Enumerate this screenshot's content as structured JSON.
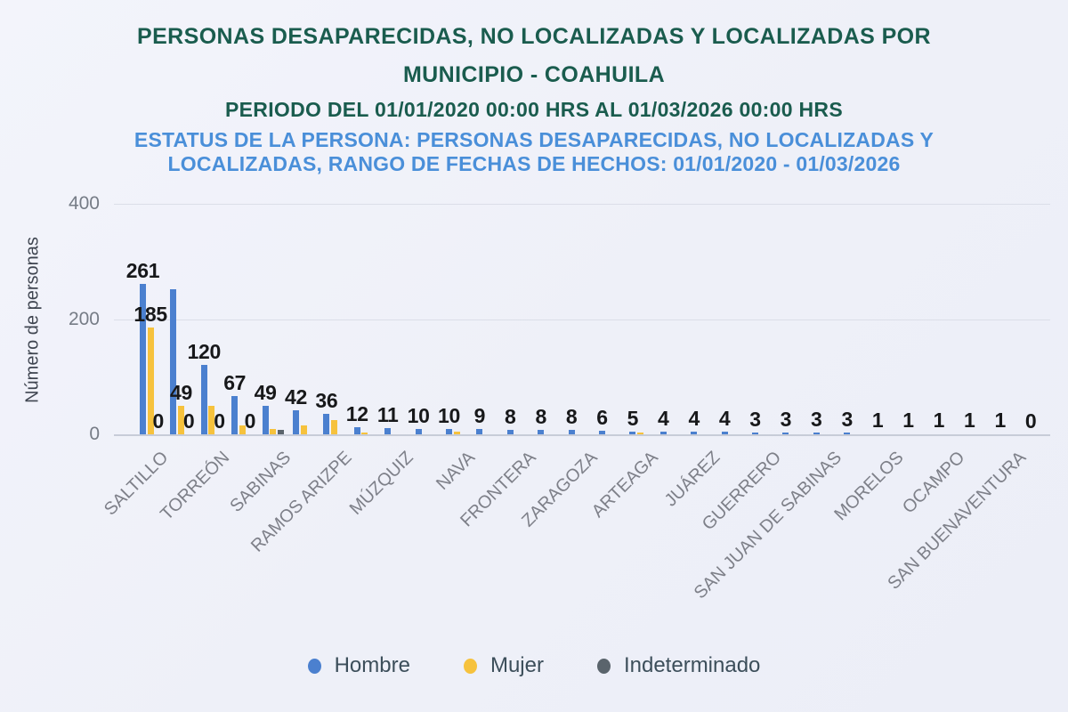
{
  "header": {
    "title_line1": "PERSONAS DESAPARECIDAS, NO LOCALIZADAS Y LOCALIZADAS POR",
    "title_line2": "MUNICIPIO - COAHUILA",
    "period_line": "PERIODO DEL 01/01/2020 00:00 HRS AL 01/03/2026 00:00 HRS",
    "status_line1": "ESTATUS DE LA PERSONA: PERSONAS DESAPARECIDAS, NO LOCALIZADAS Y",
    "status_line2": "LOCALIZADAS, RANGO DE FECHAS DE HECHOS: 01/01/2020 - 01/03/2026"
  },
  "colors": {
    "title_green": "#1a5c4e",
    "subtitle_blue": "#4a8fd9",
    "hombre": "#4b80cf",
    "mujer": "#f6c23d",
    "indeterminado": "#5a646c",
    "axis_text": "#7e8089",
    "data_label": "#17181a"
  },
  "legend": {
    "items": [
      {
        "label": "Hombre",
        "color": "#4b80cf"
      },
      {
        "label": "Mujer",
        "color": "#f6c23d"
      },
      {
        "label": "Indeterminado",
        "color": "#5a646c"
      }
    ]
  },
  "chart_data": {
    "type": "bar",
    "title": "PERSONAS DESAPARECIDAS, NO LOCALIZADAS Y LOCALIZADAS POR MUNICIPIO - COAHUILA",
    "xlabel": "",
    "ylabel": "Número de personas",
    "ylim": [
      0,
      400
    ],
    "yticks": [
      0,
      200,
      400
    ],
    "grid": "horizontal-only",
    "legend_position": "bottom",
    "xlabel_skip": 2,
    "categories": [
      "SALTILLO",
      "",
      "TORREÓN",
      "",
      "SABINAS",
      "",
      "RAMOS ARIZPE",
      "",
      "MÚZQUIZ",
      "",
      "NAVA",
      "",
      "FRONTERA",
      "",
      "ZARAGOZA",
      "",
      "ARTEAGA",
      "",
      "JUÁREZ",
      "",
      "GUERRERO",
      "",
      "SAN JUAN DE SABINAS",
      "",
      "MORELOS",
      "",
      "OCAMPO",
      "",
      "SAN BUENAVENTURA",
      ""
    ],
    "series": [
      {
        "name": "Hombre",
        "color": "#4b80cf",
        "values": [
          261,
          251,
          120,
          67,
          49,
          42,
          36,
          12,
          11,
          10,
          10,
          9,
          8,
          8,
          8,
          6,
          5,
          4,
          4,
          4,
          3,
          3,
          3,
          3,
          1,
          1,
          1,
          1,
          1,
          0
        ],
        "shown_labels": [
          "261",
          "",
          "120",
          "67",
          "49",
          "42",
          "36",
          "12",
          "11",
          "10",
          "10",
          "9",
          "8",
          "8",
          "8",
          "6",
          "5",
          "4",
          "4",
          "4",
          "3",
          "3",
          "3",
          "3",
          "1",
          "1",
          "1",
          "1",
          "1",
          "0"
        ]
      },
      {
        "name": "Mujer",
        "color": "#f6c23d",
        "values": [
          185,
          49,
          50,
          16,
          10,
          15,
          24,
          3,
          0,
          0,
          5,
          0,
          0,
          0,
          0,
          0,
          3,
          0,
          0,
          0,
          0,
          0,
          0,
          0,
          0,
          0,
          0,
          0,
          0,
          0
        ],
        "shown_labels": [
          "185",
          "49",
          "",
          "",
          "",
          "",
          "",
          "",
          "",
          "",
          "",
          "",
          "",
          "",
          "",
          "",
          "",
          "",
          "",
          "",
          "",
          "",
          "",
          "",
          "",
          "",
          "",
          "",
          "",
          ""
        ]
      },
      {
        "name": "Indeterminado",
        "color": "#5a646c",
        "values": [
          0,
          0,
          0,
          0,
          8,
          0,
          0,
          0,
          0,
          0,
          0,
          0,
          0,
          0,
          0,
          0,
          0,
          0,
          0,
          0,
          0,
          0,
          0,
          0,
          0,
          0,
          0,
          0,
          0,
          0
        ],
        "shown_labels": [
          "0",
          "0",
          "0",
          "0",
          "",
          "",
          "",
          "",
          "",
          "",
          "",
          "",
          "",
          "",
          "",
          "",
          "",
          "",
          "",
          "",
          "",
          "",
          "",
          "",
          "",
          "",
          "",
          "",
          "",
          ""
        ]
      }
    ]
  }
}
